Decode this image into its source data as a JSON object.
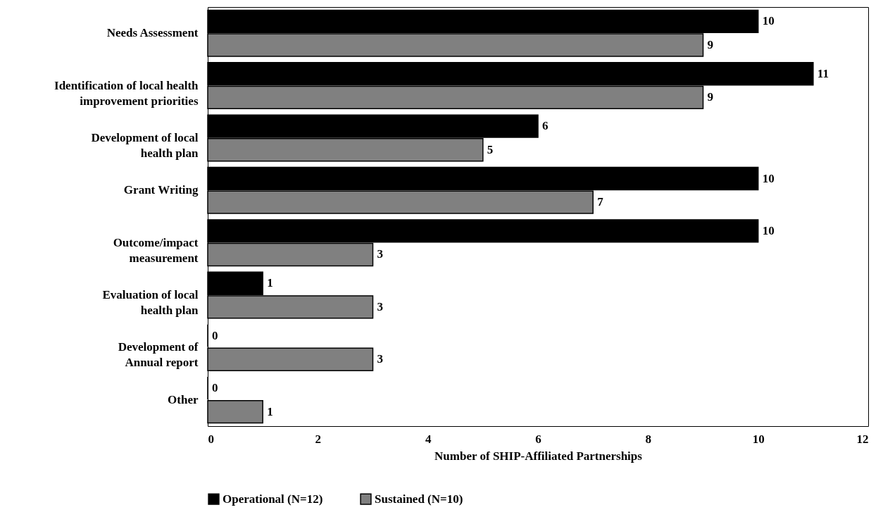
{
  "chart_data": {
    "type": "bar",
    "orientation": "horizontal",
    "xlabel": "Number of SHIP-Affiliated Partnerships",
    "categories": [
      "Needs Assessment",
      "Identification of local health\nimprovement priorities",
      "Development of local\nhealth plan",
      "Grant Writing",
      "Outcome/impact\nmeasurement",
      "Evaluation of local\nhealth plan",
      "Development of\nAnnual report",
      "Other"
    ],
    "series": [
      {
        "name": "Operational (N=12)",
        "color": "#000000",
        "values": [
          10,
          11,
          6,
          10,
          10,
          1,
          0,
          0
        ]
      },
      {
        "name": "Sustained (N=10)",
        "color": "#808080",
        "values": [
          9,
          9,
          5,
          7,
          3,
          3,
          3,
          1
        ]
      }
    ],
    "xlim": [
      0,
      12
    ],
    "xticks": [
      0,
      2,
      4,
      6,
      8,
      10,
      12
    ],
    "grid": false,
    "legend": "bottom",
    "data_labels": true
  }
}
